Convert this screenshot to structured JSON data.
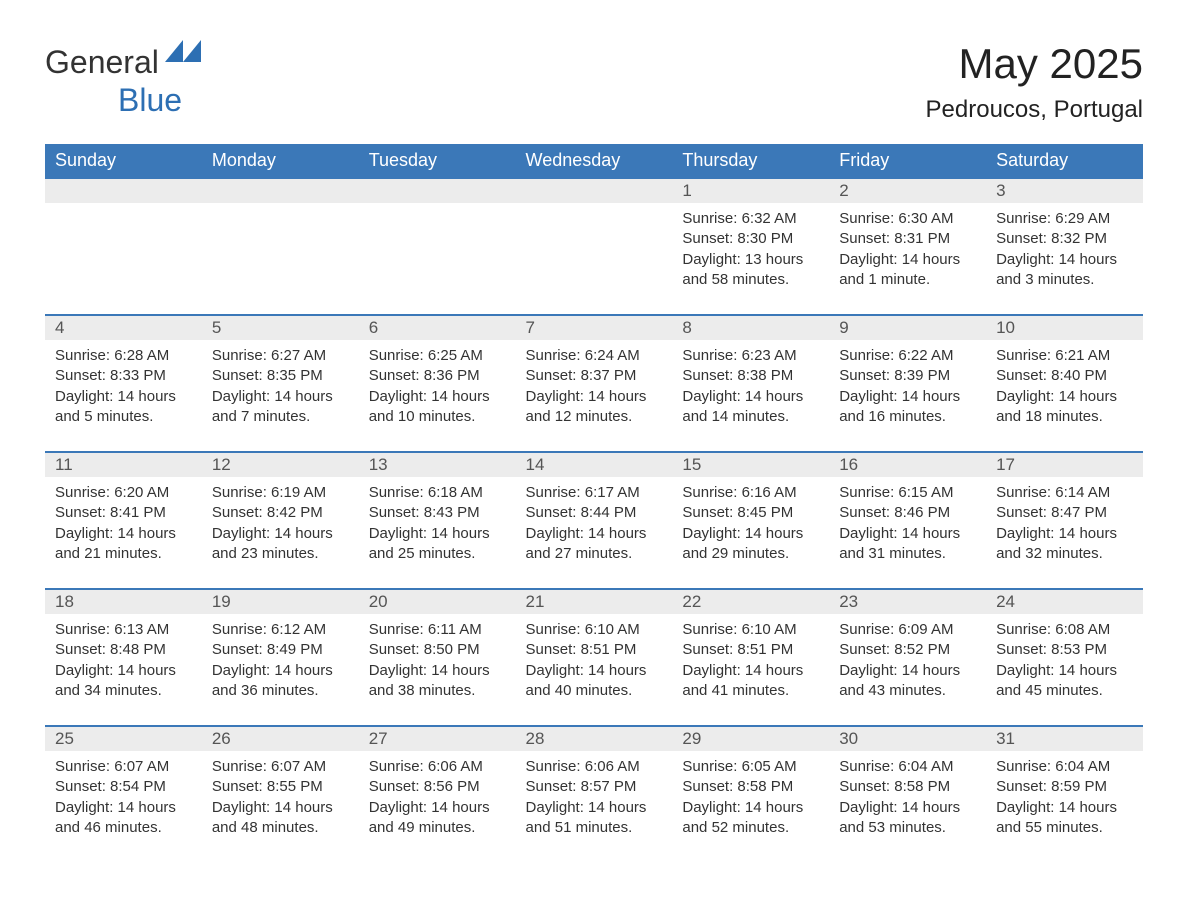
{
  "brand": {
    "main": "General",
    "sub": "Blue"
  },
  "title": "May 2025",
  "location": "Pedroucos, Portugal",
  "colors": {
    "header_bg": "#3b78b8",
    "header_text": "#ffffff",
    "daynum_bg": "#ececec",
    "row_border": "#3b78b8",
    "body_text": "#333333",
    "brand_blue": "#2d6fb3"
  },
  "weekdays": [
    "Sunday",
    "Monday",
    "Tuesday",
    "Wednesday",
    "Thursday",
    "Friday",
    "Saturday"
  ],
  "weeks": [
    [
      null,
      null,
      null,
      null,
      {
        "n": "1",
        "sr": "6:32 AM",
        "ss": "8:30 PM",
        "dl": "13 hours and 58 minutes."
      },
      {
        "n": "2",
        "sr": "6:30 AM",
        "ss": "8:31 PM",
        "dl": "14 hours and 1 minute."
      },
      {
        "n": "3",
        "sr": "6:29 AM",
        "ss": "8:32 PM",
        "dl": "14 hours and 3 minutes."
      }
    ],
    [
      {
        "n": "4",
        "sr": "6:28 AM",
        "ss": "8:33 PM",
        "dl": "14 hours and 5 minutes."
      },
      {
        "n": "5",
        "sr": "6:27 AM",
        "ss": "8:35 PM",
        "dl": "14 hours and 7 minutes."
      },
      {
        "n": "6",
        "sr": "6:25 AM",
        "ss": "8:36 PM",
        "dl": "14 hours and 10 minutes."
      },
      {
        "n": "7",
        "sr": "6:24 AM",
        "ss": "8:37 PM",
        "dl": "14 hours and 12 minutes."
      },
      {
        "n": "8",
        "sr": "6:23 AM",
        "ss": "8:38 PM",
        "dl": "14 hours and 14 minutes."
      },
      {
        "n": "9",
        "sr": "6:22 AM",
        "ss": "8:39 PM",
        "dl": "14 hours and 16 minutes."
      },
      {
        "n": "10",
        "sr": "6:21 AM",
        "ss": "8:40 PM",
        "dl": "14 hours and 18 minutes."
      }
    ],
    [
      {
        "n": "11",
        "sr": "6:20 AM",
        "ss": "8:41 PM",
        "dl": "14 hours and 21 minutes."
      },
      {
        "n": "12",
        "sr": "6:19 AM",
        "ss": "8:42 PM",
        "dl": "14 hours and 23 minutes."
      },
      {
        "n": "13",
        "sr": "6:18 AM",
        "ss": "8:43 PM",
        "dl": "14 hours and 25 minutes."
      },
      {
        "n": "14",
        "sr": "6:17 AM",
        "ss": "8:44 PM",
        "dl": "14 hours and 27 minutes."
      },
      {
        "n": "15",
        "sr": "6:16 AM",
        "ss": "8:45 PM",
        "dl": "14 hours and 29 minutes."
      },
      {
        "n": "16",
        "sr": "6:15 AM",
        "ss": "8:46 PM",
        "dl": "14 hours and 31 minutes."
      },
      {
        "n": "17",
        "sr": "6:14 AM",
        "ss": "8:47 PM",
        "dl": "14 hours and 32 minutes."
      }
    ],
    [
      {
        "n": "18",
        "sr": "6:13 AM",
        "ss": "8:48 PM",
        "dl": "14 hours and 34 minutes."
      },
      {
        "n": "19",
        "sr": "6:12 AM",
        "ss": "8:49 PM",
        "dl": "14 hours and 36 minutes."
      },
      {
        "n": "20",
        "sr": "6:11 AM",
        "ss": "8:50 PM",
        "dl": "14 hours and 38 minutes."
      },
      {
        "n": "21",
        "sr": "6:10 AM",
        "ss": "8:51 PM",
        "dl": "14 hours and 40 minutes."
      },
      {
        "n": "22",
        "sr": "6:10 AM",
        "ss": "8:51 PM",
        "dl": "14 hours and 41 minutes."
      },
      {
        "n": "23",
        "sr": "6:09 AM",
        "ss": "8:52 PM",
        "dl": "14 hours and 43 minutes."
      },
      {
        "n": "24",
        "sr": "6:08 AM",
        "ss": "8:53 PM",
        "dl": "14 hours and 45 minutes."
      }
    ],
    [
      {
        "n": "25",
        "sr": "6:07 AM",
        "ss": "8:54 PM",
        "dl": "14 hours and 46 minutes."
      },
      {
        "n": "26",
        "sr": "6:07 AM",
        "ss": "8:55 PM",
        "dl": "14 hours and 48 minutes."
      },
      {
        "n": "27",
        "sr": "6:06 AM",
        "ss": "8:56 PM",
        "dl": "14 hours and 49 minutes."
      },
      {
        "n": "28",
        "sr": "6:06 AM",
        "ss": "8:57 PM",
        "dl": "14 hours and 51 minutes."
      },
      {
        "n": "29",
        "sr": "6:05 AM",
        "ss": "8:58 PM",
        "dl": "14 hours and 52 minutes."
      },
      {
        "n": "30",
        "sr": "6:04 AM",
        "ss": "8:58 PM",
        "dl": "14 hours and 53 minutes."
      },
      {
        "n": "31",
        "sr": "6:04 AM",
        "ss": "8:59 PM",
        "dl": "14 hours and 55 minutes."
      }
    ]
  ],
  "labels": {
    "sunrise": "Sunrise:",
    "sunset": "Sunset:",
    "daylight": "Daylight:"
  }
}
